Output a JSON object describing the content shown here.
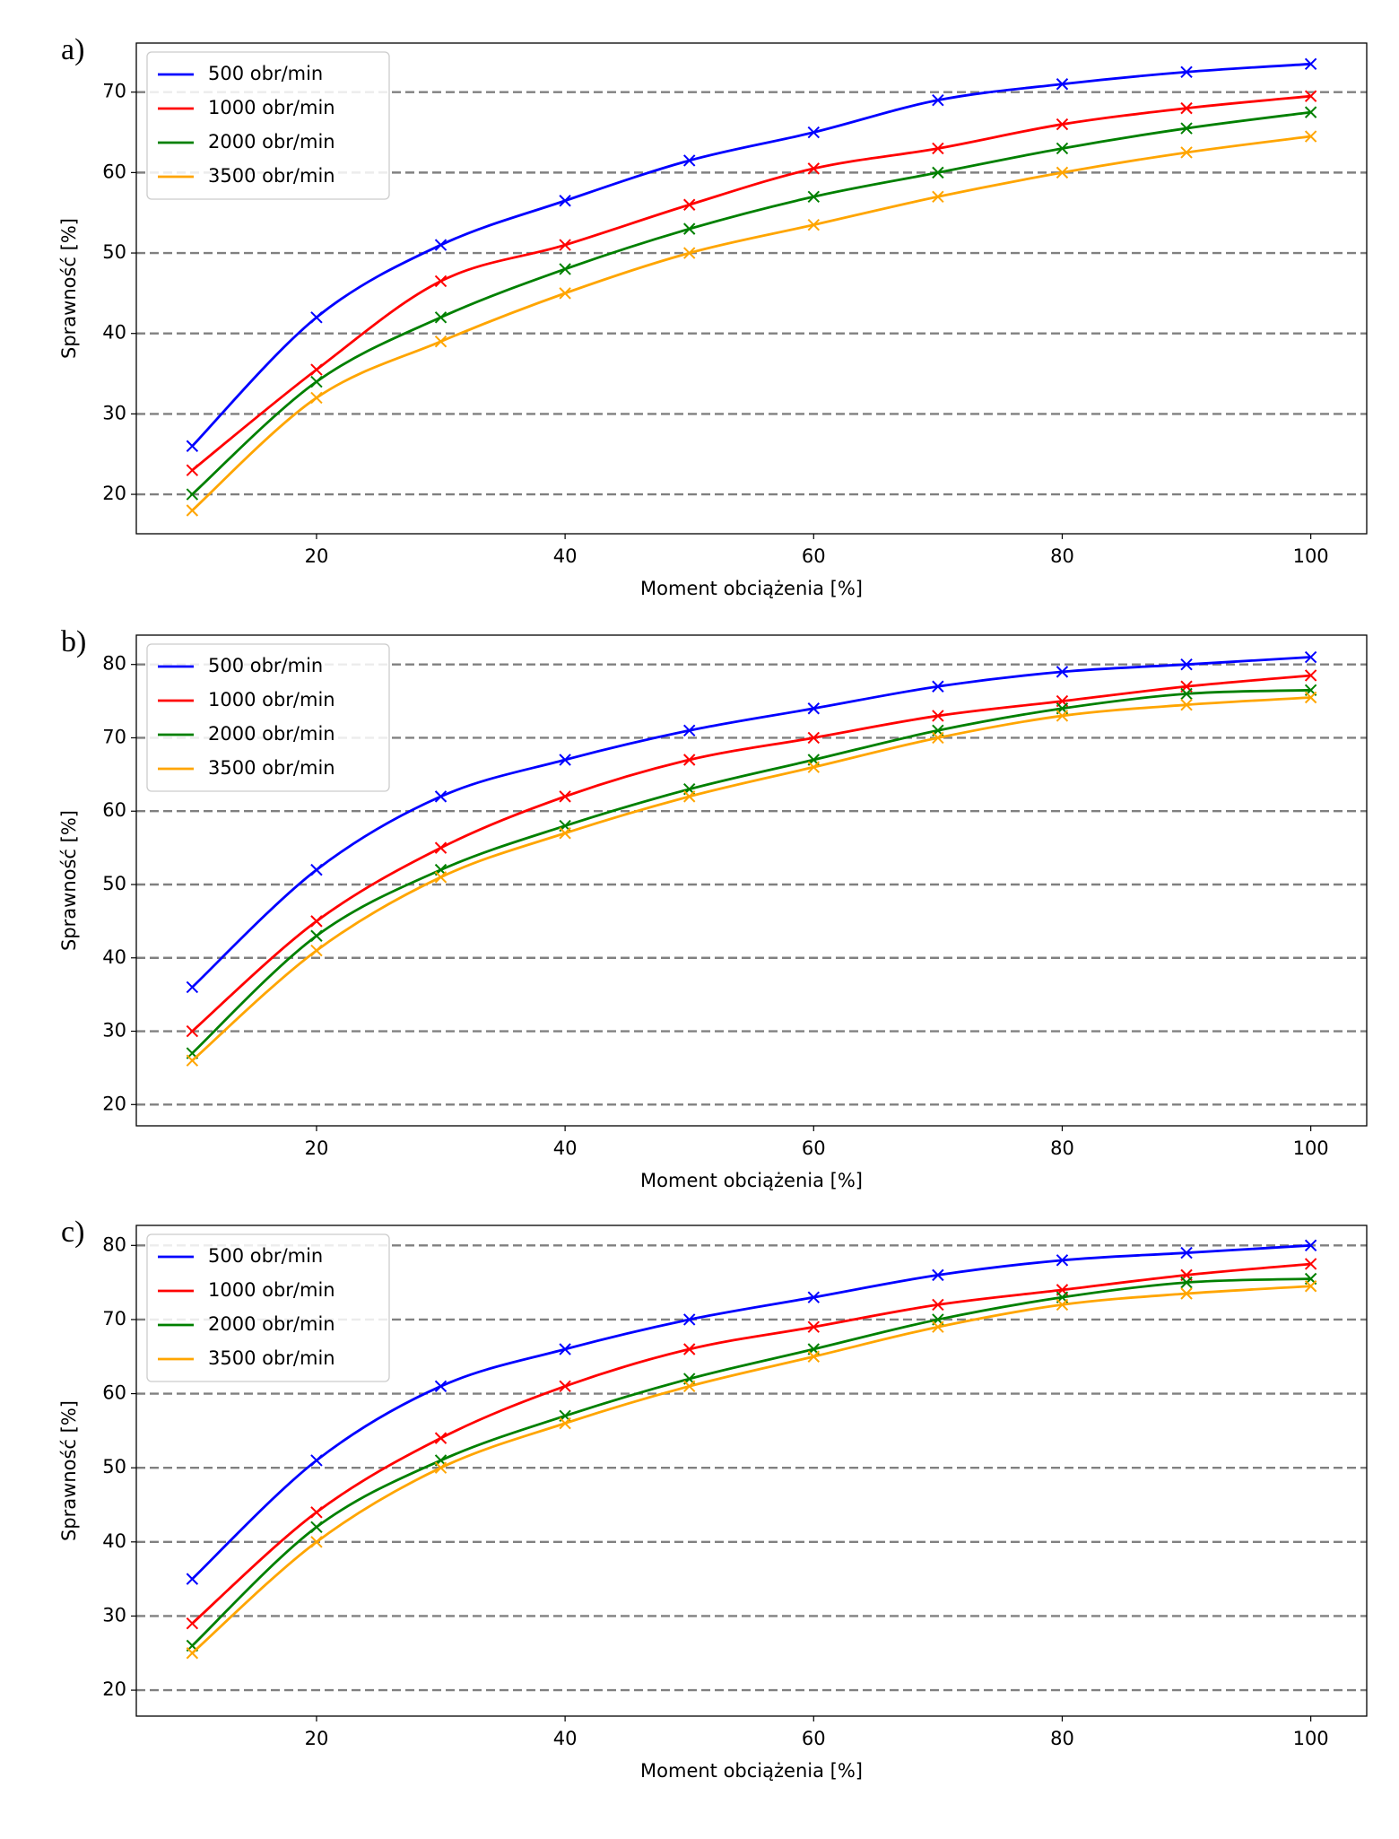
{
  "chart_data": [
    {
      "type": "line",
      "panel_label": "a)",
      "xlabel": "Moment obciążenia [%]",
      "ylabel": "Sprawność [%]",
      "x": [
        10,
        20,
        30,
        40,
        50,
        60,
        70,
        80,
        90,
        100
      ],
      "series": [
        {
          "name": "500 obr/min",
          "color": "#0000ff",
          "values": [
            26,
            42,
            51,
            56.5,
            61.5,
            65,
            69,
            71,
            72.5,
            73.5
          ]
        },
        {
          "name": "1000 obr/min",
          "color": "#ff0000",
          "values": [
            23,
            35.5,
            46.5,
            51,
            56,
            60.5,
            63,
            66,
            68,
            69.5
          ]
        },
        {
          "name": "2000 obr/min",
          "color": "#008000",
          "values": [
            20,
            34,
            42,
            48,
            53,
            57,
            60,
            63,
            65.5,
            67.5
          ]
        },
        {
          "name": "3500 obr/min",
          "color": "#ffa500",
          "values": [
            18,
            32,
            39,
            45,
            50,
            53.5,
            57,
            60,
            62.5,
            64.5
          ]
        }
      ],
      "xlim": [
        5.5,
        104.5
      ],
      "xticks": [
        20,
        40,
        60,
        80,
        100
      ],
      "ylim": [
        15.1,
        76.1
      ],
      "yticks": [
        20,
        30,
        40,
        50,
        60,
        70
      ],
      "grid": "y",
      "legend": "upper left"
    },
    {
      "type": "line",
      "panel_label": "b)",
      "xlabel": "Moment obciążenia [%]",
      "ylabel": "Sprawność [%]",
      "x": [
        10,
        20,
        30,
        40,
        50,
        60,
        70,
        80,
        90,
        100
      ],
      "series": [
        {
          "name": "500 obr/min",
          "color": "#0000ff",
          "values": [
            36,
            52,
            62,
            67,
            71,
            74,
            77,
            79,
            80,
            81
          ]
        },
        {
          "name": "1000 obr/min",
          "color": "#ff0000",
          "values": [
            30,
            45,
            55,
            62,
            67,
            70,
            73,
            75,
            77,
            78.5
          ]
        },
        {
          "name": "2000 obr/min",
          "color": "#008000",
          "values": [
            27,
            43,
            52,
            58,
            63,
            67,
            71,
            74,
            76,
            76.5
          ]
        },
        {
          "name": "3500 obr/min",
          "color": "#ffa500",
          "values": [
            26,
            41,
            51,
            57,
            62,
            66,
            70,
            73,
            74.5,
            75.5
          ]
        }
      ],
      "xlim": [
        5.5,
        104.5
      ],
      "xticks": [
        20,
        40,
        60,
        80,
        100
      ],
      "ylim": [
        17.1,
        84
      ],
      "yticks": [
        20,
        30,
        40,
        50,
        60,
        70,
        80
      ],
      "grid": "y",
      "legend": "upper left"
    },
    {
      "type": "line",
      "panel_label": "c)",
      "xlabel": "Moment obciążenia [%]",
      "ylabel": "Sprawność [%]",
      "x": [
        10,
        20,
        30,
        40,
        50,
        60,
        70,
        80,
        90,
        100
      ],
      "series": [
        {
          "name": "500 obr/min",
          "color": "#0000ff",
          "values": [
            35,
            51,
            61,
            66,
            70,
            73,
            76,
            78,
            79,
            80
          ]
        },
        {
          "name": "1000 obr/min",
          "color": "#ff0000",
          "values": [
            29,
            44,
            54,
            61,
            66,
            69,
            72,
            74,
            76,
            77.5
          ]
        },
        {
          "name": "2000 obr/min",
          "color": "#008000",
          "values": [
            26,
            42,
            51,
            57,
            62,
            66,
            70,
            73,
            75,
            75.5
          ]
        },
        {
          "name": "3500 obr/min",
          "color": "#ffa500",
          "values": [
            25,
            40,
            50,
            56,
            61,
            65,
            69,
            72,
            73.5,
            74.5
          ]
        }
      ],
      "xlim": [
        5.5,
        104.5
      ],
      "xticks": [
        20,
        40,
        60,
        80,
        100
      ],
      "ylim": [
        16.5,
        82.7
      ],
      "yticks": [
        20,
        30,
        40,
        50,
        60,
        70,
        80
      ],
      "grid": "y",
      "legend": "upper left"
    }
  ]
}
